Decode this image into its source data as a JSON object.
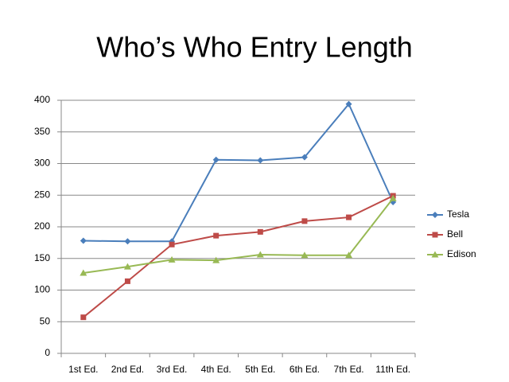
{
  "chart_data": {
    "type": "line",
    "title": "Who’s Who Entry Length",
    "categories": [
      "1st Ed.",
      "2nd Ed.",
      "3rd Ed.",
      "4th Ed.",
      "5th Ed.",
      "6th Ed.",
      "7th Ed.",
      "11th Ed."
    ],
    "series": [
      {
        "name": "Tesla",
        "color": "#4a7ebb",
        "marker": "diamond",
        "values": [
          178,
          177,
          177,
          306,
          305,
          310,
          394,
          239
        ]
      },
      {
        "name": "Bell",
        "color": "#be4b48",
        "marker": "square",
        "values": [
          57,
          114,
          172,
          186,
          192,
          209,
          215,
          249
        ]
      },
      {
        "name": "Edison",
        "color": "#98b954",
        "marker": "triangle",
        "values": [
          127,
          137,
          148,
          147,
          156,
          155,
          155,
          245
        ]
      }
    ],
    "ylim": [
      0,
      400
    ],
    "yticks": [
      0,
      50,
      100,
      150,
      200,
      250,
      300,
      350,
      400
    ],
    "grid": true,
    "legend": "right"
  }
}
